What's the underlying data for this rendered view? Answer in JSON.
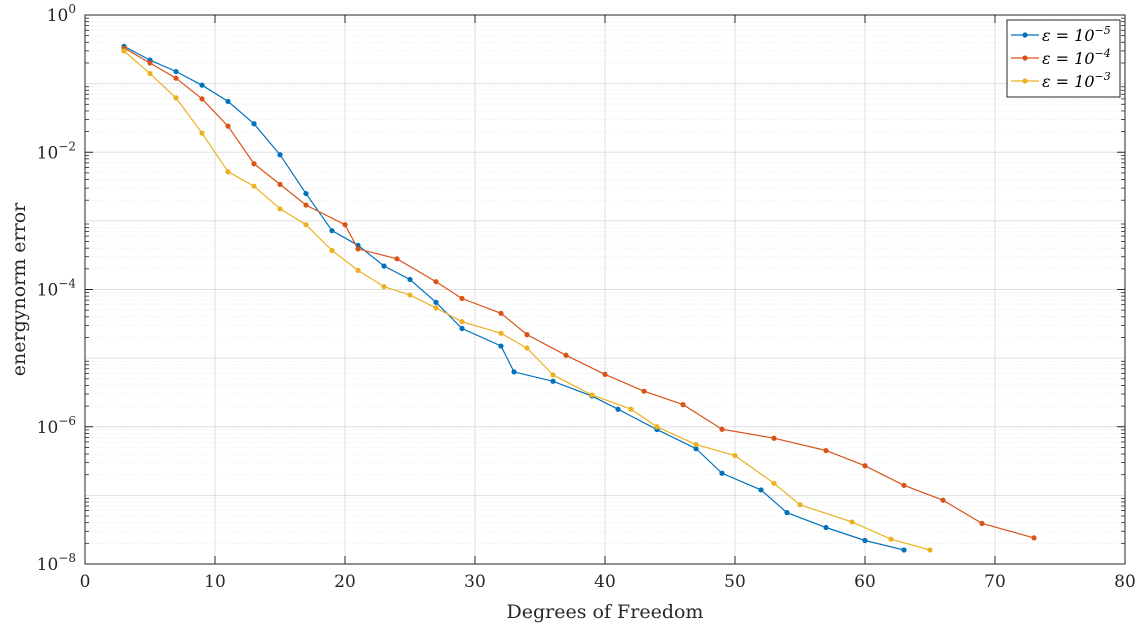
{
  "chart_data": {
    "type": "line",
    "title": "",
    "xlabel": "Degrees of Freedom",
    "ylabel": "energynorm error",
    "xlim": [
      0,
      80
    ],
    "ylim": [
      1e-08,
      1
    ],
    "yscale": "log",
    "grid": true,
    "legend_position": "top-right",
    "x_ticks": [
      0,
      10,
      20,
      30,
      40,
      50,
      60,
      70,
      80
    ],
    "y_ticks": [
      {
        "value": 1e-08,
        "base": "10",
        "exp": "−8"
      },
      {
        "value": 1e-06,
        "base": "10",
        "exp": "−6"
      },
      {
        "value": 0.0001,
        "base": "10",
        "exp": "−4"
      },
      {
        "value": 0.01,
        "base": "10",
        "exp": "−2"
      },
      {
        "value": 1,
        "base": "10",
        "exp": "0"
      }
    ],
    "series": [
      {
        "name_prefix": "ε = 10",
        "name_exp": "−5",
        "color": "#0072BD",
        "points": [
          [
            3,
            0.35
          ],
          [
            5,
            0.22
          ],
          [
            7,
            0.15
          ],
          [
            9,
            0.095
          ],
          [
            11,
            0.055
          ],
          [
            13,
            0.026
          ],
          [
            15,
            0.0092
          ],
          [
            17,
            0.0025
          ],
          [
            19,
            0.00072
          ],
          [
            21,
            0.00044
          ],
          [
            23,
            0.00022
          ],
          [
            25,
            0.00014
          ],
          [
            27,
            6.5e-05
          ],
          [
            29,
            2.7e-05
          ],
          [
            32,
            1.5e-05
          ],
          [
            33,
            6.3e-06
          ],
          [
            36,
            4.6e-06
          ],
          [
            39,
            2.8e-06
          ],
          [
            41,
            1.8e-06
          ],
          [
            44,
            9.1e-07
          ],
          [
            47,
            4.8e-07
          ],
          [
            49,
            2.1e-07
          ],
          [
            52,
            1.2e-07
          ],
          [
            54,
            5.6e-08
          ],
          [
            57,
            3.4e-08
          ],
          [
            60,
            2.2e-08
          ],
          [
            63,
            1.6e-08
          ]
        ]
      },
      {
        "name_prefix": "ε = 10",
        "name_exp": "−4",
        "color": "#D95319",
        "points": [
          [
            3,
            0.33
          ],
          [
            5,
            0.2
          ],
          [
            7,
            0.12
          ],
          [
            9,
            0.06
          ],
          [
            11,
            0.024
          ],
          [
            13,
            0.0068
          ],
          [
            15,
            0.0034
          ],
          [
            17,
            0.0017
          ],
          [
            20,
            0.00088
          ],
          [
            21,
            0.00039
          ],
          [
            24,
            0.00028
          ],
          [
            27,
            0.00013
          ],
          [
            29,
            7.4e-05
          ],
          [
            32,
            4.5e-05
          ],
          [
            34,
            2.2e-05
          ],
          [
            37,
            1.1e-05
          ],
          [
            40,
            5.8e-06
          ],
          [
            43,
            3.3e-06
          ],
          [
            46,
            2.1e-06
          ],
          [
            49,
            9.2e-07
          ],
          [
            53,
            6.8e-07
          ],
          [
            57,
            4.5e-07
          ],
          [
            60,
            2.7e-07
          ],
          [
            63,
            1.4e-07
          ],
          [
            66,
            8.5e-08
          ],
          [
            69,
            3.9e-08
          ],
          [
            73,
            2.4e-08
          ]
        ]
      },
      {
        "name_prefix": "ε = 10",
        "name_exp": "−3",
        "color": "#EDB120",
        "points": [
          [
            3,
            0.3
          ],
          [
            5,
            0.14
          ],
          [
            7,
            0.062
          ],
          [
            9,
            0.019
          ],
          [
            11,
            0.0052
          ],
          [
            13,
            0.0032
          ],
          [
            15,
            0.0015
          ],
          [
            17,
            0.00088
          ],
          [
            19,
            0.00037
          ],
          [
            21,
            0.00019
          ],
          [
            23,
            0.00011
          ],
          [
            25,
            8.3e-05
          ],
          [
            27,
            5.4e-05
          ],
          [
            29,
            3.4e-05
          ],
          [
            32,
            2.3e-05
          ],
          [
            34,
            1.4e-05
          ],
          [
            36,
            5.7e-06
          ],
          [
            39,
            2.9e-06
          ],
          [
            42,
            1.8e-06
          ],
          [
            44,
            1e-06
          ],
          [
            47,
            5.5e-07
          ],
          [
            50,
            3.8e-07
          ],
          [
            53,
            1.5e-07
          ],
          [
            55,
            7.3e-08
          ],
          [
            59,
            4.1e-08
          ],
          [
            62,
            2.3e-08
          ],
          [
            65,
            1.6e-08
          ]
        ]
      }
    ]
  }
}
